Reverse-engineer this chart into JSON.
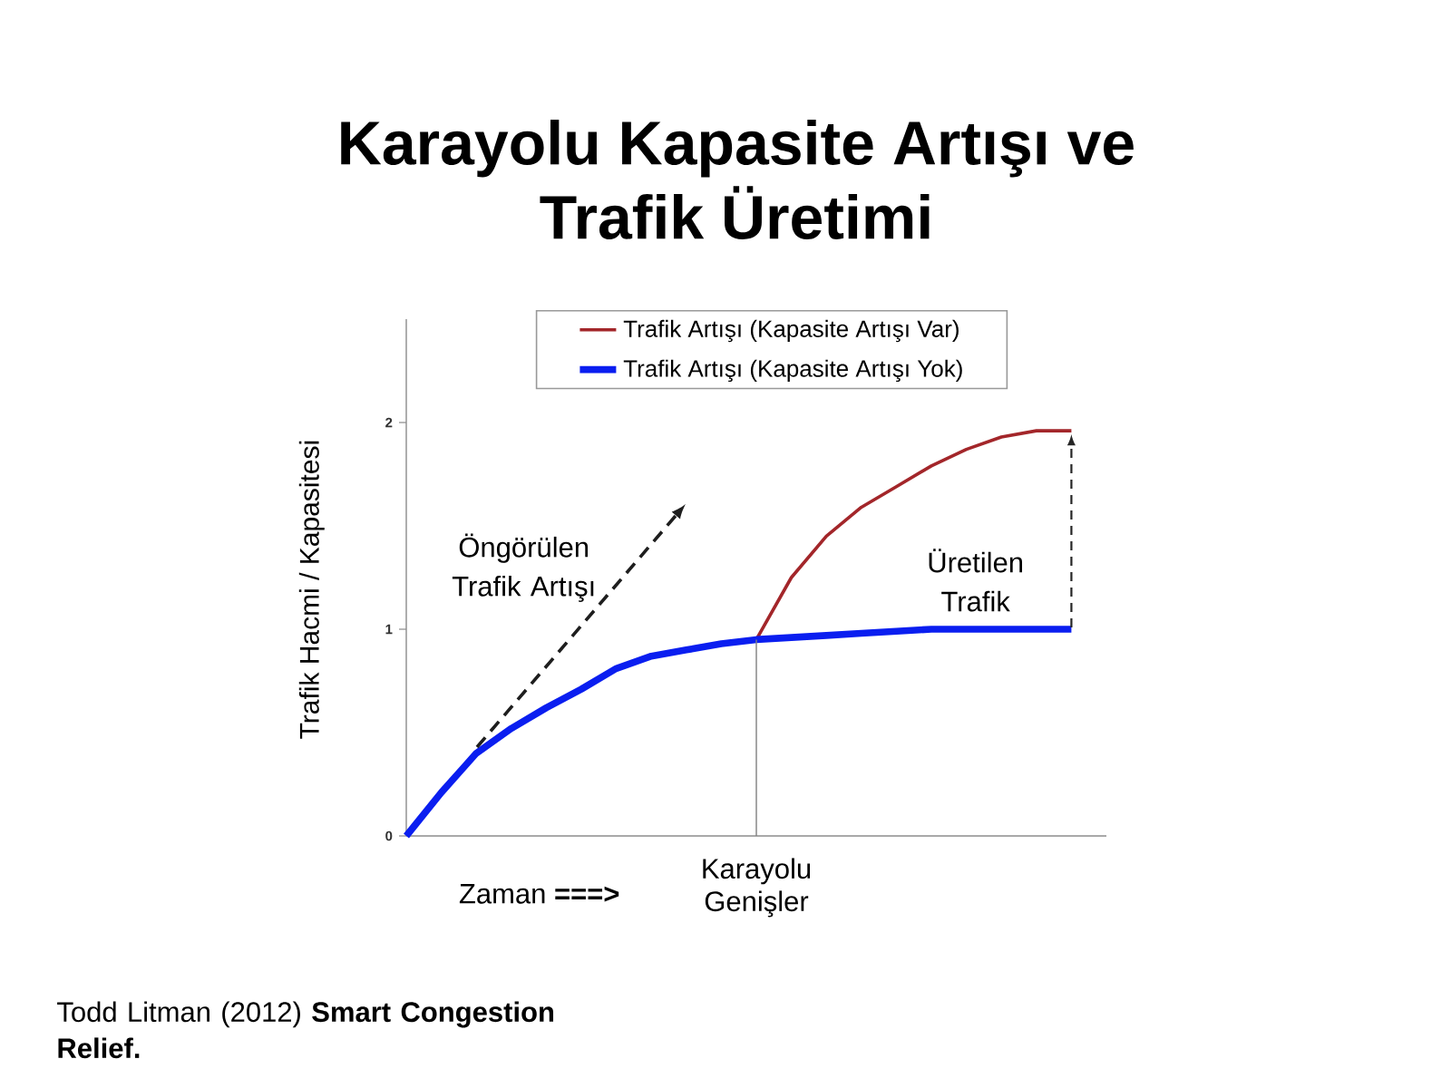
{
  "chart_data": {
    "type": "line",
    "title": "Karayolu Kapasite Artışı ve Trafik Üretimi",
    "xlabel": "Zaman **===>**",
    "ylabel": "Trafik Hacmi / Kapasitesi",
    "categories": [
      null,
      null,
      null,
      null,
      null,
      null,
      null,
      null,
      null,
      null,
      null,
      null,
      null,
      null,
      null,
      null,
      null,
      null,
      null,
      null,
      null
    ],
    "series": [
      {
        "name": "Trafik Artışı (Kapasite Artışı Var)",
        "color": "#a3262a",
        "values": [
          null,
          null,
          null,
          null,
          null,
          null,
          null,
          null,
          null,
          null,
          0.95,
          1.25,
          1.45,
          1.59,
          1.69,
          1.79,
          1.87,
          1.93,
          1.96,
          1.96,
          null
        ]
      },
      {
        "name": "Trafik Artışı (Kapasite Artışı Yok)",
        "color": "#0a1ef0",
        "values": [
          0,
          0.21,
          0.4,
          0.52,
          0.62,
          0.71,
          0.81,
          0.87,
          0.9,
          0.93,
          0.95,
          0.96,
          0.97,
          0.98,
          0.99,
          1.0,
          1.0,
          1.0,
          1.0,
          1.0,
          null
        ]
      }
    ],
    "ylim": [
      0,
      2.5
    ],
    "yticks": [
      0,
      1,
      2
    ],
    "tick_labels": "y",
    "legend": "top",
    "annotations": [
      "Öngörülen Trafik Artışı",
      "Üretilen Trafik",
      "Karayolu Genişler",
      "Todd Litman (2012) **Smart Congestion Relief.**"
    ]
  }
}
